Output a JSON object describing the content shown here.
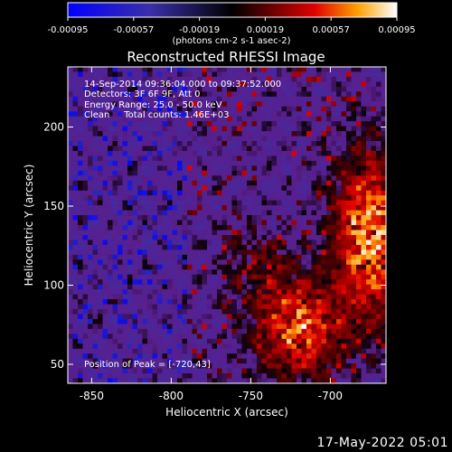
{
  "chart_data": {
    "type": "heatmap",
    "title": "Reconstructed RHESSI Image",
    "xlabel": "Heliocentric X (arcsec)",
    "ylabel": "Heliocentric Y (arcsec)",
    "xlim": [
      -865,
      -665
    ],
    "ylim": [
      38,
      238
    ],
    "xticks": [
      -850,
      -800,
      -750,
      -700
    ],
    "yticks": [
      50,
      100,
      150,
      200
    ],
    "colorbar": {
      "min": -0.00095,
      "max": 0.00095,
      "tick_labels": [
        "-0.00095",
        "-0.00057",
        "-0.00019",
        "0.00019",
        "0.00057",
        "0.00095"
      ],
      "unit_label": "(photons cm-2 s-1 asec-2)"
    },
    "annotations": [
      "14-Sep-2014 09:36:04.000 to 09:37:52.000",
      "Detectors: 3F 6F 9F, Att 0",
      "Energy Range: 25.0 - 50.0 keV",
      "Clean     Total counts: 1.46E+03"
    ],
    "peak_text": "Position of Peak = [-720,43]",
    "peak": [
      -720,
      43
    ],
    "grid": false
  },
  "footer": {
    "timestamp": "17-May-2022 05:01"
  }
}
